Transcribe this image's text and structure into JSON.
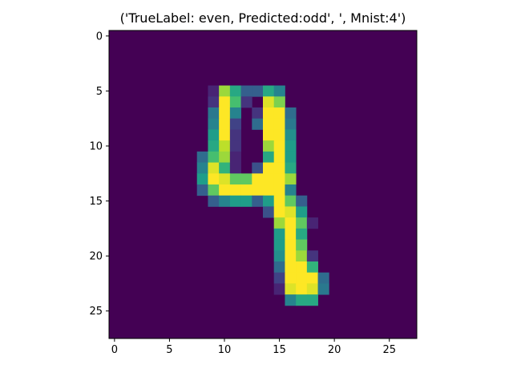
{
  "chart_data": {
    "type": "heatmap",
    "title": "('TrueLabel: even, Predicted:odd', ', Mnist:4')",
    "xlabel": "",
    "ylabel": "",
    "colormap": "viridis",
    "grid": false,
    "xlim": [
      -0.5,
      27.5
    ],
    "ylim": [
      27.5,
      -0.5
    ],
    "xticks": [
      0,
      5,
      10,
      15,
      20,
      25
    ],
    "yticks": [
      0,
      5,
      10,
      15,
      20,
      25
    ],
    "xtick_labels": [
      "0",
      "5",
      "10",
      "15",
      "20",
      "25"
    ],
    "ytick_labels": [
      "0",
      "5",
      "10",
      "15",
      "20",
      "25"
    ],
    "rows": 28,
    "cols": 28,
    "value_range": [
      0,
      1
    ],
    "pixels": [
      {
        "r": 5,
        "c": 9,
        "v": 0.1
      },
      {
        "r": 5,
        "c": 10,
        "v": 0.85
      },
      {
        "r": 5,
        "c": 11,
        "v": 0.6
      },
      {
        "r": 5,
        "c": 12,
        "v": 0.3
      },
      {
        "r": 5,
        "c": 13,
        "v": 0.3
      },
      {
        "r": 5,
        "c": 14,
        "v": 0.6
      },
      {
        "r": 5,
        "c": 15,
        "v": 0.45
      },
      {
        "r": 6,
        "c": 9,
        "v": 0.15
      },
      {
        "r": 6,
        "c": 10,
        "v": 1.0
      },
      {
        "r": 6,
        "c": 11,
        "v": 0.7
      },
      {
        "r": 6,
        "c": 12,
        "v": 0.15
      },
      {
        "r": 6,
        "c": 14,
        "v": 0.95
      },
      {
        "r": 6,
        "c": 15,
        "v": 0.8
      },
      {
        "r": 7,
        "c": 9,
        "v": 0.4
      },
      {
        "r": 7,
        "c": 10,
        "v": 1.0
      },
      {
        "r": 7,
        "c": 11,
        "v": 0.45
      },
      {
        "r": 7,
        "c": 13,
        "v": 0.15
      },
      {
        "r": 7,
        "c": 14,
        "v": 1.0
      },
      {
        "r": 7,
        "c": 15,
        "v": 1.0
      },
      {
        "r": 7,
        "c": 16,
        "v": 0.35
      },
      {
        "r": 8,
        "c": 9,
        "v": 0.45
      },
      {
        "r": 8,
        "c": 10,
        "v": 1.0
      },
      {
        "r": 8,
        "c": 11,
        "v": 0.2
      },
      {
        "r": 8,
        "c": 13,
        "v": 0.35
      },
      {
        "r": 8,
        "c": 14,
        "v": 1.0
      },
      {
        "r": 8,
        "c": 15,
        "v": 1.0
      },
      {
        "r": 8,
        "c": 16,
        "v": 0.4
      },
      {
        "r": 9,
        "c": 9,
        "v": 0.55
      },
      {
        "r": 9,
        "c": 10,
        "v": 1.0
      },
      {
        "r": 9,
        "c": 11,
        "v": 0.15
      },
      {
        "r": 9,
        "c": 14,
        "v": 1.0
      },
      {
        "r": 9,
        "c": 15,
        "v": 1.0
      },
      {
        "r": 9,
        "c": 16,
        "v": 0.5
      },
      {
        "r": 10,
        "c": 9,
        "v": 0.6
      },
      {
        "r": 10,
        "c": 10,
        "v": 0.9
      },
      {
        "r": 10,
        "c": 11,
        "v": 0.15
      },
      {
        "r": 10,
        "c": 14,
        "v": 0.85
      },
      {
        "r": 10,
        "c": 15,
        "v": 1.0
      },
      {
        "r": 10,
        "c": 16,
        "v": 0.55
      },
      {
        "r": 11,
        "c": 8,
        "v": 0.35
      },
      {
        "r": 11,
        "c": 9,
        "v": 0.7
      },
      {
        "r": 11,
        "c": 10,
        "v": 0.85
      },
      {
        "r": 11,
        "c": 11,
        "v": 0.1
      },
      {
        "r": 11,
        "c": 14,
        "v": 0.6
      },
      {
        "r": 11,
        "c": 15,
        "v": 1.0
      },
      {
        "r": 11,
        "c": 16,
        "v": 0.55
      },
      {
        "r": 12,
        "c": 8,
        "v": 0.45
      },
      {
        "r": 12,
        "c": 9,
        "v": 0.95
      },
      {
        "r": 12,
        "c": 10,
        "v": 0.65
      },
      {
        "r": 12,
        "c": 11,
        "v": 0.1
      },
      {
        "r": 12,
        "c": 13,
        "v": 0.25
      },
      {
        "r": 12,
        "c": 14,
        "v": 1.0
      },
      {
        "r": 12,
        "c": 15,
        "v": 1.0
      },
      {
        "r": 12,
        "c": 16,
        "v": 0.6
      },
      {
        "r": 13,
        "c": 8,
        "v": 0.55
      },
      {
        "r": 13,
        "c": 9,
        "v": 1.0
      },
      {
        "r": 13,
        "c": 10,
        "v": 0.95
      },
      {
        "r": 13,
        "c": 11,
        "v": 0.75
      },
      {
        "r": 13,
        "c": 12,
        "v": 0.75
      },
      {
        "r": 13,
        "c": 13,
        "v": 1.0
      },
      {
        "r": 13,
        "c": 14,
        "v": 1.0
      },
      {
        "r": 13,
        "c": 15,
        "v": 1.0
      },
      {
        "r": 13,
        "c": 16,
        "v": 0.85
      },
      {
        "r": 14,
        "c": 8,
        "v": 0.3
      },
      {
        "r": 14,
        "c": 9,
        "v": 0.75
      },
      {
        "r": 14,
        "c": 10,
        "v": 1.0
      },
      {
        "r": 14,
        "c": 11,
        "v": 1.0
      },
      {
        "r": 14,
        "c": 12,
        "v": 1.0
      },
      {
        "r": 14,
        "c": 13,
        "v": 1.0
      },
      {
        "r": 14,
        "c": 14,
        "v": 1.0
      },
      {
        "r": 14,
        "c": 15,
        "v": 1.0
      },
      {
        "r": 14,
        "c": 16,
        "v": 0.45
      },
      {
        "r": 15,
        "c": 9,
        "v": 0.3
      },
      {
        "r": 15,
        "c": 10,
        "v": 0.45
      },
      {
        "r": 15,
        "c": 11,
        "v": 0.55
      },
      {
        "r": 15,
        "c": 12,
        "v": 0.55
      },
      {
        "r": 15,
        "c": 13,
        "v": 0.3
      },
      {
        "r": 15,
        "c": 14,
        "v": 0.55
      },
      {
        "r": 15,
        "c": 15,
        "v": 1.0
      },
      {
        "r": 15,
        "c": 16,
        "v": 0.75
      },
      {
        "r": 15,
        "c": 17,
        "v": 0.3
      },
      {
        "r": 16,
        "c": 14,
        "v": 0.25
      },
      {
        "r": 16,
        "c": 15,
        "v": 1.0
      },
      {
        "r": 16,
        "c": 16,
        "v": 0.95
      },
      {
        "r": 16,
        "c": 17,
        "v": 0.55
      },
      {
        "r": 17,
        "c": 15,
        "v": 0.85
      },
      {
        "r": 17,
        "c": 16,
        "v": 1.0
      },
      {
        "r": 17,
        "c": 17,
        "v": 0.75
      },
      {
        "r": 17,
        "c": 18,
        "v": 0.1
      },
      {
        "r": 18,
        "c": 15,
        "v": 0.55
      },
      {
        "r": 18,
        "c": 16,
        "v": 1.0
      },
      {
        "r": 18,
        "c": 17,
        "v": 0.6
      },
      {
        "r": 19,
        "c": 15,
        "v": 0.55
      },
      {
        "r": 19,
        "c": 16,
        "v": 1.0
      },
      {
        "r": 19,
        "c": 17,
        "v": 0.75
      },
      {
        "r": 20,
        "c": 15,
        "v": 0.5
      },
      {
        "r": 20,
        "c": 16,
        "v": 1.0
      },
      {
        "r": 20,
        "c": 17,
        "v": 0.85
      },
      {
        "r": 20,
        "c": 18,
        "v": 0.15
      },
      {
        "r": 21,
        "c": 15,
        "v": 0.35
      },
      {
        "r": 21,
        "c": 16,
        "v": 1.0
      },
      {
        "r": 21,
        "c": 17,
        "v": 1.0
      },
      {
        "r": 21,
        "c": 18,
        "v": 0.65
      },
      {
        "r": 22,
        "c": 15,
        "v": 0.2
      },
      {
        "r": 22,
        "c": 16,
        "v": 1.0
      },
      {
        "r": 22,
        "c": 17,
        "v": 1.0
      },
      {
        "r": 22,
        "c": 18,
        "v": 1.0
      },
      {
        "r": 22,
        "c": 19,
        "v": 0.35
      },
      {
        "r": 23,
        "c": 15,
        "v": 0.1
      },
      {
        "r": 23,
        "c": 16,
        "v": 0.95
      },
      {
        "r": 23,
        "c": 17,
        "v": 1.0
      },
      {
        "r": 23,
        "c": 18,
        "v": 0.95
      },
      {
        "r": 23,
        "c": 19,
        "v": 0.4
      },
      {
        "r": 24,
        "c": 16,
        "v": 0.45
      },
      {
        "r": 24,
        "c": 17,
        "v": 0.6
      },
      {
        "r": 24,
        "c": 18,
        "v": 0.6
      }
    ]
  }
}
